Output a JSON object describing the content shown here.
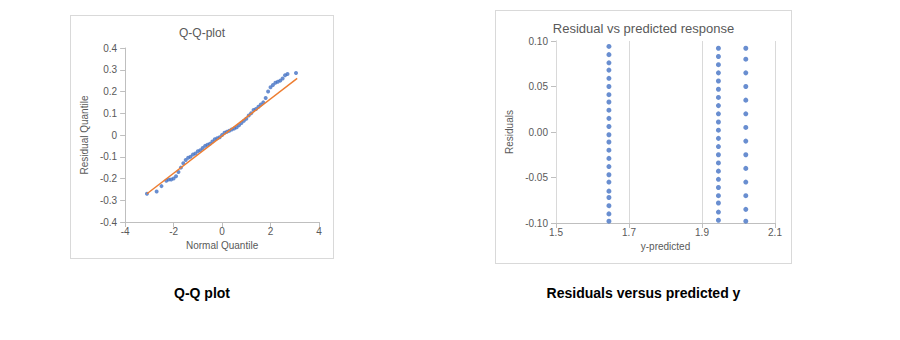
{
  "chart_data": [
    {
      "type": "scatter",
      "title": "Q-Q-plot",
      "caption": "Q-Q plot",
      "x_label": "Normal Quantile",
      "y_label": "Residual Quantile",
      "xlim": [
        -4,
        4
      ],
      "xticks": [
        -4,
        -2,
        0,
        2,
        4
      ],
      "ylim": [
        -0.4,
        0.4
      ],
      "yticks": [
        -0.4,
        -0.3,
        -0.2,
        -0.1,
        0,
        0.1,
        0.2,
        0.3,
        0.4
      ],
      "grid": false,
      "series": [
        {
          "type": "scatter",
          "color": "#4472c4",
          "marker": "circle",
          "x": [
            -3.1,
            -2.7,
            -2.5,
            -2.3,
            -2.2,
            -2.1,
            -2.0,
            -1.9,
            -1.8,
            -1.7,
            -1.6,
            -1.5,
            -1.4,
            -1.3,
            -1.2,
            -1.1,
            -1.0,
            -0.9,
            -0.8,
            -0.7,
            -0.6,
            -0.5,
            -0.4,
            -0.3,
            -0.2,
            -0.1,
            0,
            0.1,
            0.2,
            0.3,
            0.4,
            0.5,
            0.6,
            0.7,
            0.8,
            0.9,
            1.0,
            1.1,
            1.2,
            1.3,
            1.4,
            1.5,
            1.6,
            1.7,
            1.8,
            1.9,
            2.0,
            2.1,
            2.2,
            2.3,
            2.4,
            2.5,
            2.6,
            2.7,
            3.05
          ],
          "values": [
            -0.27,
            -0.26,
            -0.235,
            -0.21,
            -0.205,
            -0.205,
            -0.2,
            -0.19,
            -0.17,
            -0.15,
            -0.13,
            -0.115,
            -0.105,
            -0.1,
            -0.09,
            -0.085,
            -0.075,
            -0.07,
            -0.06,
            -0.05,
            -0.045,
            -0.04,
            -0.03,
            -0.02,
            -0.015,
            -0.01,
            0,
            0.01,
            0.015,
            0.02,
            0.025,
            0.03,
            0.035,
            0.045,
            0.055,
            0.065,
            0.075,
            0.09,
            0.1,
            0.115,
            0.12,
            0.13,
            0.14,
            0.15,
            0.17,
            0.2,
            0.22,
            0.23,
            0.24,
            0.245,
            0.25,
            0.26,
            0.275,
            0.28,
            0.285
          ]
        },
        {
          "type": "line",
          "color": "#ed7d31",
          "line_style": "solid",
          "x": [
            -3.1,
            3.1
          ],
          "values": [
            -0.27,
            0.26
          ]
        }
      ]
    },
    {
      "type": "scatter",
      "title": "Residual vs predicted response",
      "caption": "Residuals versus predicted y",
      "x_label": "y-predicted",
      "y_label": "Residuals",
      "xlim": [
        1.5,
        2.1
      ],
      "xticks": [
        1.5,
        1.7,
        1.9,
        2.1
      ],
      "ylim": [
        -0.1,
        0.1
      ],
      "yticks": [
        {
          "value": -0.1,
          "label": "-0.10"
        },
        -0.05,
        {
          "value": 0,
          "label": "0.00"
        },
        0.05,
        {
          "value": 0.1,
          "label": "0.10"
        }
      ],
      "grid": "x",
      "series": [
        {
          "type": "scatter",
          "color": "#4472c4",
          "marker": "circle",
          "x": [
            1.645,
            1.645,
            1.645,
            1.645,
            1.645,
            1.645,
            1.645,
            1.645,
            1.645,
            1.645,
            1.645,
            1.645,
            1.645,
            1.645,
            1.645,
            1.645,
            1.645,
            1.645,
            1.645,
            1.645,
            1.645,
            1.645,
            1.645,
            1.945,
            1.945,
            1.945,
            1.945,
            1.945,
            1.945,
            1.945,
            1.945,
            1.945,
            1.945,
            1.945,
            1.945,
            1.945,
            1.945,
            1.945,
            1.945,
            1.945,
            1.945,
            1.945,
            1.945,
            1.945,
            1.945,
            2.02,
            2.02,
            2.02,
            2.02,
            2.02,
            2.02,
            2.02,
            2.02,
            2.02,
            2.02,
            2.02,
            2.02,
            2.02,
            2.02
          ],
          "values": [
            -0.098,
            -0.09,
            -0.081,
            -0.072,
            -0.065,
            -0.055,
            -0.047,
            -0.038,
            -0.029,
            -0.02,
            -0.011,
            -0.003,
            0.006,
            0.015,
            0.024,
            0.033,
            0.041,
            0.05,
            0.059,
            0.068,
            0.076,
            0.085,
            0.094,
            -0.097,
            -0.088,
            -0.078,
            -0.07,
            -0.061,
            -0.052,
            -0.043,
            -0.034,
            -0.025,
            -0.016,
            -0.007,
            0.002,
            0.011,
            0.02,
            0.029,
            0.038,
            0.047,
            0.056,
            0.065,
            0.074,
            0.083,
            0.092,
            -0.098,
            -0.085,
            -0.07,
            -0.055,
            -0.04,
            -0.025,
            -0.01,
            0.005,
            0.02,
            0.035,
            0.05,
            0.065,
            0.08,
            0.092
          ]
        }
      ]
    }
  ]
}
